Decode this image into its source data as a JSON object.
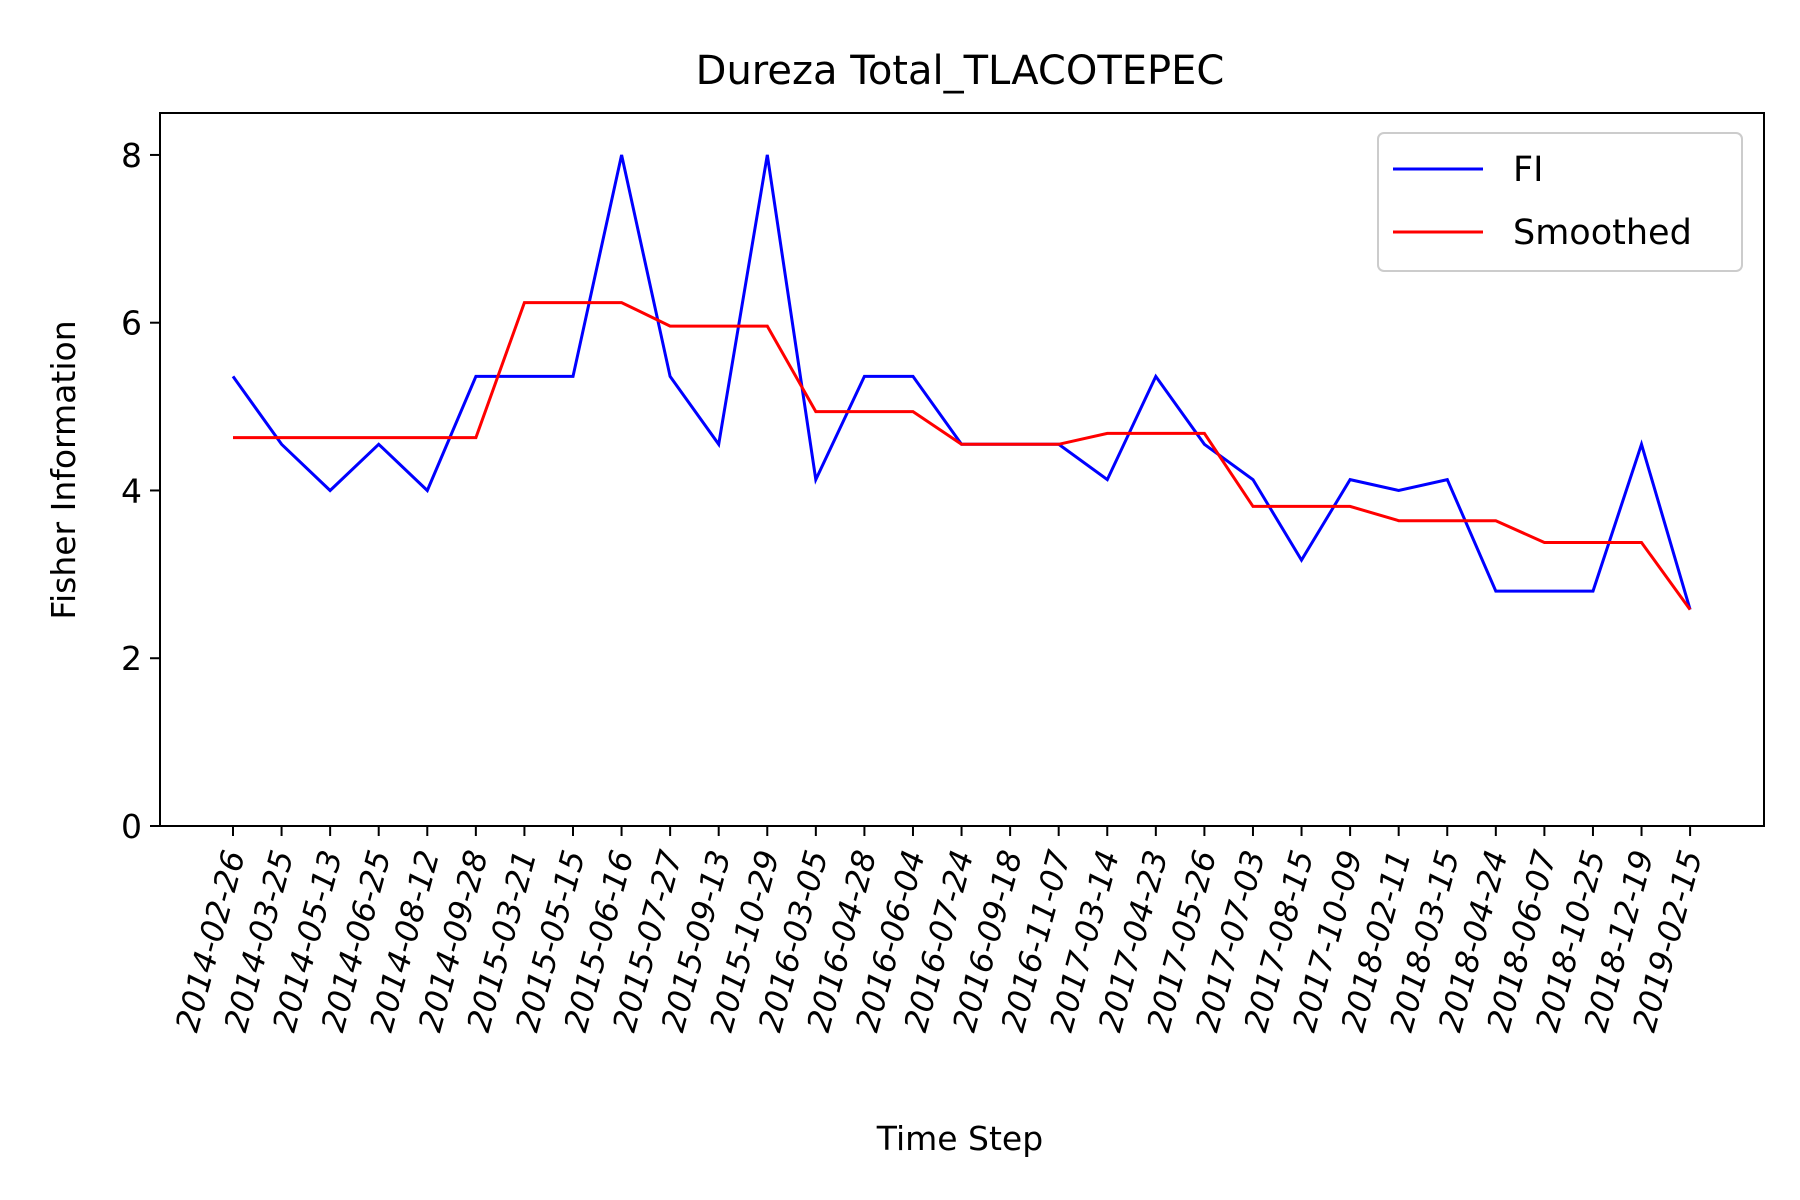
{
  "chart_data": {
    "type": "line",
    "title": "Dureza Total_TLACOTEPEC",
    "xlabel": "Time Step",
    "ylabel": "Fisher Information",
    "ylim": [
      0,
      8.5
    ],
    "yticks": [
      0,
      2,
      4,
      6,
      8
    ],
    "grid": false,
    "legend_position": "top-right",
    "categories": [
      "2014-02-26",
      "2014-03-25",
      "2014-05-13",
      "2014-06-25",
      "2014-08-12",
      "2014-09-28",
      "2015-03-21",
      "2015-05-15",
      "2015-06-16",
      "2015-07-27",
      "2015-09-13",
      "2015-10-29",
      "2016-03-05",
      "2016-04-28",
      "2016-06-04",
      "2016-07-24",
      "2016-09-18",
      "2016-11-07",
      "2017-03-14",
      "2017-04-23",
      "2017-05-26",
      "2017-07-03",
      "2017-08-15",
      "2017-10-09",
      "2018-02-11",
      "2018-03-15",
      "2018-04-24",
      "2018-06-07",
      "2018-10-25",
      "2018-12-19",
      "2019-02-15"
    ],
    "series": [
      {
        "name": "FI",
        "color": "#0000ff",
        "values": [
          5.36,
          4.55,
          4.0,
          4.55,
          4.0,
          5.36,
          5.36,
          5.36,
          8.0,
          5.36,
          4.55,
          8.0,
          4.13,
          5.36,
          5.36,
          4.55,
          4.55,
          4.55,
          4.13,
          5.36,
          4.55,
          4.13,
          3.17,
          4.13,
          4.0,
          4.13,
          2.8,
          2.8,
          2.8,
          4.55,
          2.58
        ]
      },
      {
        "name": "Smoothed",
        "color": "#ff0000",
        "values": [
          4.63,
          4.63,
          4.63,
          4.63,
          4.63,
          4.63,
          6.24,
          6.24,
          6.24,
          5.96,
          5.96,
          5.96,
          4.94,
          4.94,
          4.94,
          4.55,
          4.55,
          4.55,
          4.68,
          4.68,
          4.68,
          3.81,
          3.81,
          3.81,
          3.64,
          3.64,
          3.64,
          3.38,
          3.38,
          3.38,
          2.58
        ]
      }
    ]
  }
}
